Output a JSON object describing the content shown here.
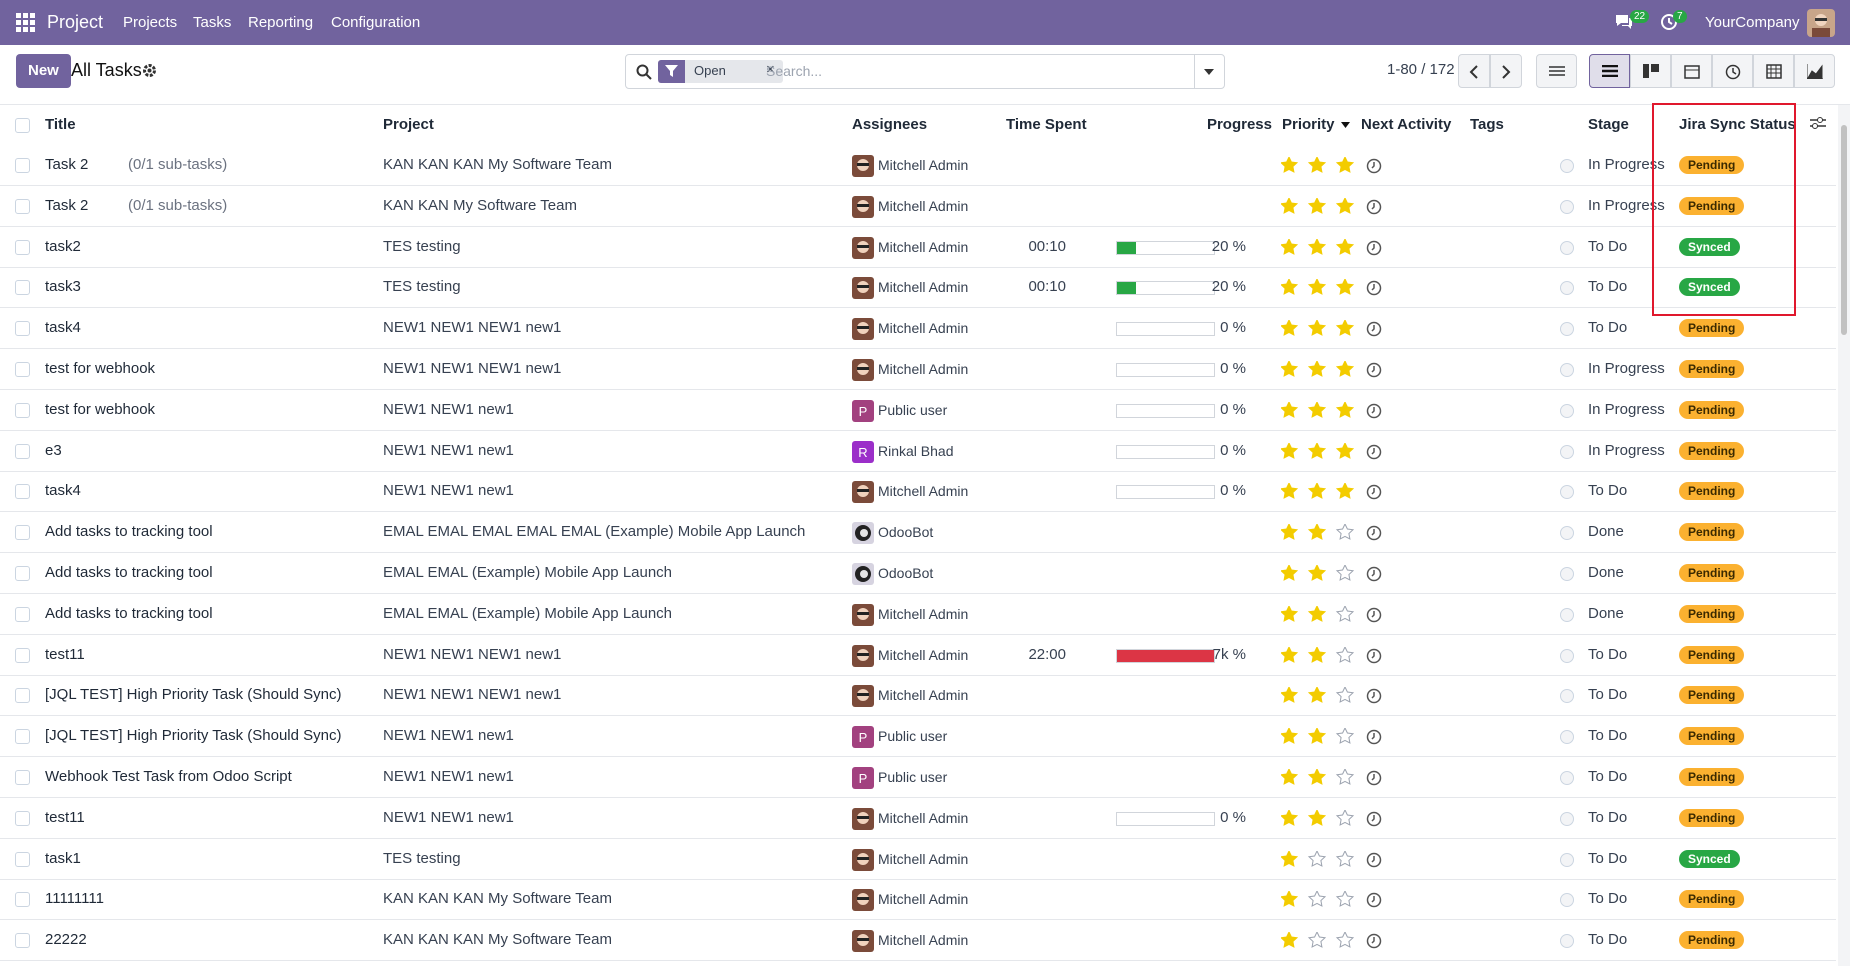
{
  "navbar": {
    "app": "Project",
    "menus": [
      "Projects",
      "Tasks",
      "Reporting",
      "Configuration"
    ],
    "messages_badge": "22",
    "activities_badge": "7",
    "company": "YourCompany"
  },
  "control": {
    "new_button": "New",
    "breadcrumb": "All Tasks",
    "filter": "Open",
    "search_placeholder": "Search...",
    "pager": "1-80 / 172"
  },
  "table": {
    "columns": [
      "Title",
      "Project",
      "Assignees",
      "Time Spent",
      "Progress",
      "Priority",
      "Next Activity",
      "Tags",
      "Stage",
      "Jira Sync Status"
    ],
    "priority_max": 3,
    "rows": [
      {
        "title": "Task 2",
        "subtasks": "(0/1 sub-tasks)",
        "project": "KAN KAN KAN My Software Team",
        "assignee": "Mitchell Admin",
        "avatar": "admin",
        "priority": 3,
        "stage": "In Progress",
        "jira": "Pending"
      },
      {
        "title": "Task 2",
        "subtasks": "(0/1 sub-tasks)",
        "project": "KAN KAN My Software Team",
        "assignee": "Mitchell Admin",
        "avatar": "admin",
        "priority": 3,
        "stage": "In Progress",
        "jira": "Pending"
      },
      {
        "title": "task2",
        "project": "TES testing",
        "assignee": "Mitchell Admin",
        "avatar": "admin",
        "time_spent": "00:10",
        "progress": 20,
        "progress_label": "20 %",
        "progress_color": "#28a745",
        "priority": 3,
        "stage": "To Do",
        "jira": "Synced"
      },
      {
        "title": "task3",
        "project": "TES testing",
        "assignee": "Mitchell Admin",
        "avatar": "admin",
        "time_spent": "00:10",
        "progress": 20,
        "progress_label": "20 %",
        "progress_color": "#28a745",
        "priority": 3,
        "stage": "To Do",
        "jira": "Synced"
      },
      {
        "title": "task4",
        "project": "NEW1 NEW1 NEW1 new1",
        "assignee": "Mitchell Admin",
        "avatar": "admin",
        "progress": 0,
        "progress_label": "0 %",
        "progress_color": "#28a745",
        "priority": 3,
        "stage": "To Do",
        "jira": "Pending"
      },
      {
        "title": "test for webhook",
        "project": "NEW1 NEW1 NEW1 new1",
        "assignee": "Mitchell Admin",
        "avatar": "admin",
        "progress": 0,
        "progress_label": "0 %",
        "progress_color": "#28a745",
        "priority": 3,
        "stage": "In Progress",
        "jira": "Pending"
      },
      {
        "title": "test for webhook",
        "project": "NEW1 NEW1 new1",
        "assignee": "Public user",
        "avatar": "letter",
        "avatar_letter": "P",
        "avatar_color": "#a2417f",
        "progress": 0,
        "progress_label": "0 %",
        "progress_color": "#28a745",
        "priority": 3,
        "stage": "In Progress",
        "jira": "Pending"
      },
      {
        "title": "e3",
        "project": "NEW1 NEW1 new1",
        "assignee": "Rinkal Bhad",
        "avatar": "letter",
        "avatar_letter": "R",
        "avatar_color": "#9b2fc9",
        "progress": 0,
        "progress_label": "0 %",
        "progress_color": "#28a745",
        "priority": 3,
        "stage": "In Progress",
        "jira": "Pending"
      },
      {
        "title": "task4",
        "project": "NEW1 NEW1 new1",
        "assignee": "Mitchell Admin",
        "avatar": "admin",
        "progress": 0,
        "progress_label": "0 %",
        "progress_color": "#28a745",
        "priority": 3,
        "stage": "To Do",
        "jira": "Pending"
      },
      {
        "title": "Add tasks to tracking tool",
        "project": "EMAL EMAL EMAL EMAL EMAL (Example) Mobile App Launch",
        "assignee": "OdooBot",
        "avatar": "bot",
        "priority": 2,
        "stage": "Done",
        "jira": "Pending"
      },
      {
        "title": "Add tasks to tracking tool",
        "project": "EMAL EMAL (Example) Mobile App Launch",
        "assignee": "OdooBot",
        "avatar": "bot",
        "priority": 2,
        "stage": "Done",
        "jira": "Pending"
      },
      {
        "title": "Add tasks to tracking tool",
        "project": "EMAL EMAL (Example) Mobile App Launch",
        "assignee": "Mitchell Admin",
        "avatar": "admin",
        "priority": 2,
        "stage": "Done",
        "jira": "Pending"
      },
      {
        "title": "test11",
        "project": "NEW1 NEW1 NEW1 new1",
        "assignee": "Mitchell Admin",
        "avatar": "admin",
        "time_spent": "22:00",
        "progress": 7000,
        "progress_label": "7k %",
        "progress_color": "#dc3545",
        "priority": 2,
        "stage": "To Do",
        "jira": "Pending"
      },
      {
        "title": "[JQL TEST] High Priority Task (Should Sync)",
        "project": "NEW1 NEW1 NEW1 new1",
        "assignee": "Mitchell Admin",
        "avatar": "admin",
        "priority": 2,
        "stage": "To Do",
        "jira": "Pending"
      },
      {
        "title": "[JQL TEST] High Priority Task (Should Sync)",
        "project": "NEW1 NEW1 new1",
        "assignee": "Public user",
        "avatar": "letter",
        "avatar_letter": "P",
        "avatar_color": "#a2417f",
        "priority": 2,
        "stage": "To Do",
        "jira": "Pending"
      },
      {
        "title": "Webhook Test Task from Odoo Script",
        "project": "NEW1 NEW1 new1",
        "assignee": "Public user",
        "avatar": "letter",
        "avatar_letter": "P",
        "avatar_color": "#a2417f",
        "priority": 2,
        "stage": "To Do",
        "jira": "Pending"
      },
      {
        "title": "test11",
        "project": "NEW1 NEW1 new1",
        "assignee": "Mitchell Admin",
        "avatar": "admin",
        "progress": 0,
        "progress_label": "0 %",
        "progress_color": "#28a745",
        "priority": 2,
        "stage": "To Do",
        "jira": "Pending"
      },
      {
        "title": "task1",
        "project": "TES testing",
        "assignee": "Mitchell Admin",
        "avatar": "admin",
        "priority": 1,
        "stage": "To Do",
        "jira": "Synced"
      },
      {
        "title": "11111111",
        "project": "KAN KAN KAN My Software Team",
        "assignee": "Mitchell Admin",
        "avatar": "admin",
        "priority": 1,
        "stage": "To Do",
        "jira": "Pending"
      },
      {
        "title": "22222",
        "project": "KAN KAN KAN My Software Team",
        "assignee": "Mitchell Admin",
        "avatar": "admin",
        "priority": 1,
        "stage": "To Do",
        "jira": "Pending"
      }
    ]
  }
}
